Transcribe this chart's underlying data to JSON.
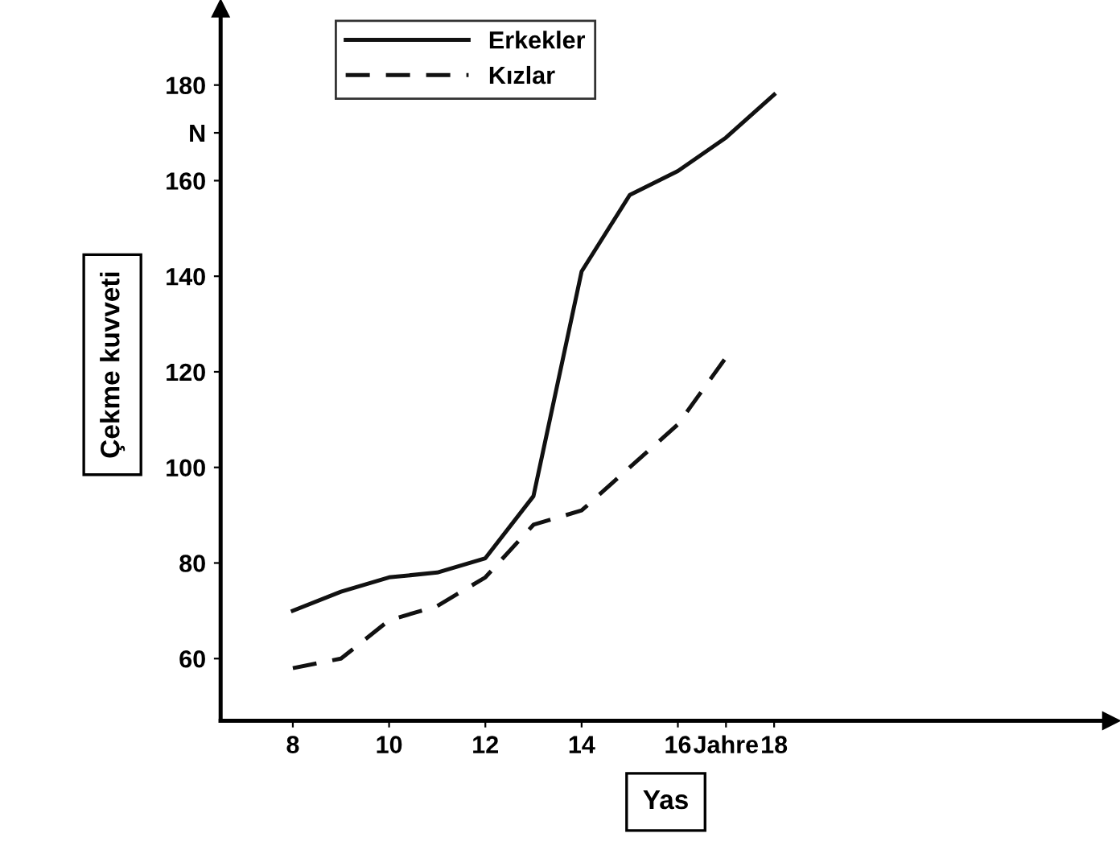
{
  "chart_data": {
    "type": "line",
    "xlabel": "Yas",
    "ylabel": "Çekme kuvveti",
    "x": [
      8,
      9,
      10,
      11,
      12,
      13,
      14,
      15,
      16,
      17,
      18
    ],
    "series": [
      {
        "name": "Erkekler",
        "color": "#111111",
        "line_style": "solid",
        "values": [
          70,
          74,
          77,
          78,
          81,
          94,
          141,
          157,
          162,
          169,
          178
        ]
      },
      {
        "name": "Kızlar",
        "color": "#111111",
        "line_style": "dashed",
        "values": [
          58,
          60,
          68,
          71,
          77,
          88,
          91,
          100,
          109,
          123,
          null
        ]
      }
    ],
    "xlim": [
      6.5,
      25
    ],
    "ylim": [
      47,
      196
    ],
    "xticks": [
      8,
      10,
      12,
      14,
      16,
      {
        "value": 17,
        "label": "Jahre"
      },
      18
    ],
    "yticks": [
      60,
      80,
      100,
      120,
      140,
      160,
      {
        "value": 170,
        "label": "N"
      },
      180
    ],
    "grid": false,
    "legend": "top",
    "marker": "none"
  }
}
